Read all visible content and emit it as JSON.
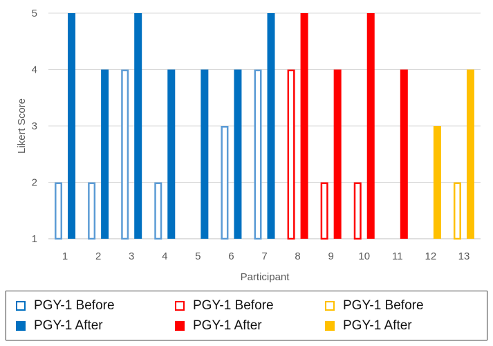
{
  "chart_data": {
    "type": "bar",
    "xlabel": "Participant",
    "ylabel": "Likert  Score",
    "ylim": [
      1,
      5
    ],
    "yticks": [
      1,
      2,
      3,
      4,
      5
    ],
    "grid": true,
    "legend_position": "bottom",
    "categories": [
      "1",
      "2",
      "3",
      "4",
      "5",
      "6",
      "7",
      "8",
      "9",
      "10",
      "11",
      "12",
      "13"
    ],
    "groups": [
      {
        "participants": [
          "1",
          "2",
          "3",
          "4",
          "5",
          "6",
          "7"
        ],
        "color": "#0070c0",
        "before_stroke": "#5b9bd5"
      },
      {
        "participants": [
          "8",
          "9",
          "10",
          "11"
        ],
        "color": "#ff0000",
        "before_stroke": "#ff0000"
      },
      {
        "participants": [
          "12",
          "13"
        ],
        "color": "#ffc000",
        "before_stroke": "#ffc000"
      }
    ],
    "series": [
      {
        "name": "PGY-1 Before",
        "style": "outline",
        "values": [
          2,
          2,
          4,
          2,
          null,
          3,
          4,
          4,
          2,
          2,
          null,
          null,
          2
        ]
      },
      {
        "name": "PGY-1 After",
        "style": "filled",
        "values": [
          5,
          4,
          5,
          4,
          4,
          4,
          5,
          5,
          4,
          5,
          4,
          3,
          4
        ]
      }
    ]
  },
  "legend": {
    "items": [
      {
        "label": "PGY-1 Before",
        "style": "outline",
        "color": "#0070c0"
      },
      {
        "label": "PGY-1 Before",
        "style": "outline",
        "color": "#ff0000"
      },
      {
        "label": "PGY-1 Before",
        "style": "outline",
        "color": "#ffc000"
      },
      {
        "label": "PGY-1 After",
        "style": "filled",
        "color": "#0070c0"
      },
      {
        "label": "PGY-1 After",
        "style": "filled",
        "color": "#ff0000"
      },
      {
        "label": "PGY-1 After",
        "style": "filled",
        "color": "#ffc000"
      }
    ]
  }
}
